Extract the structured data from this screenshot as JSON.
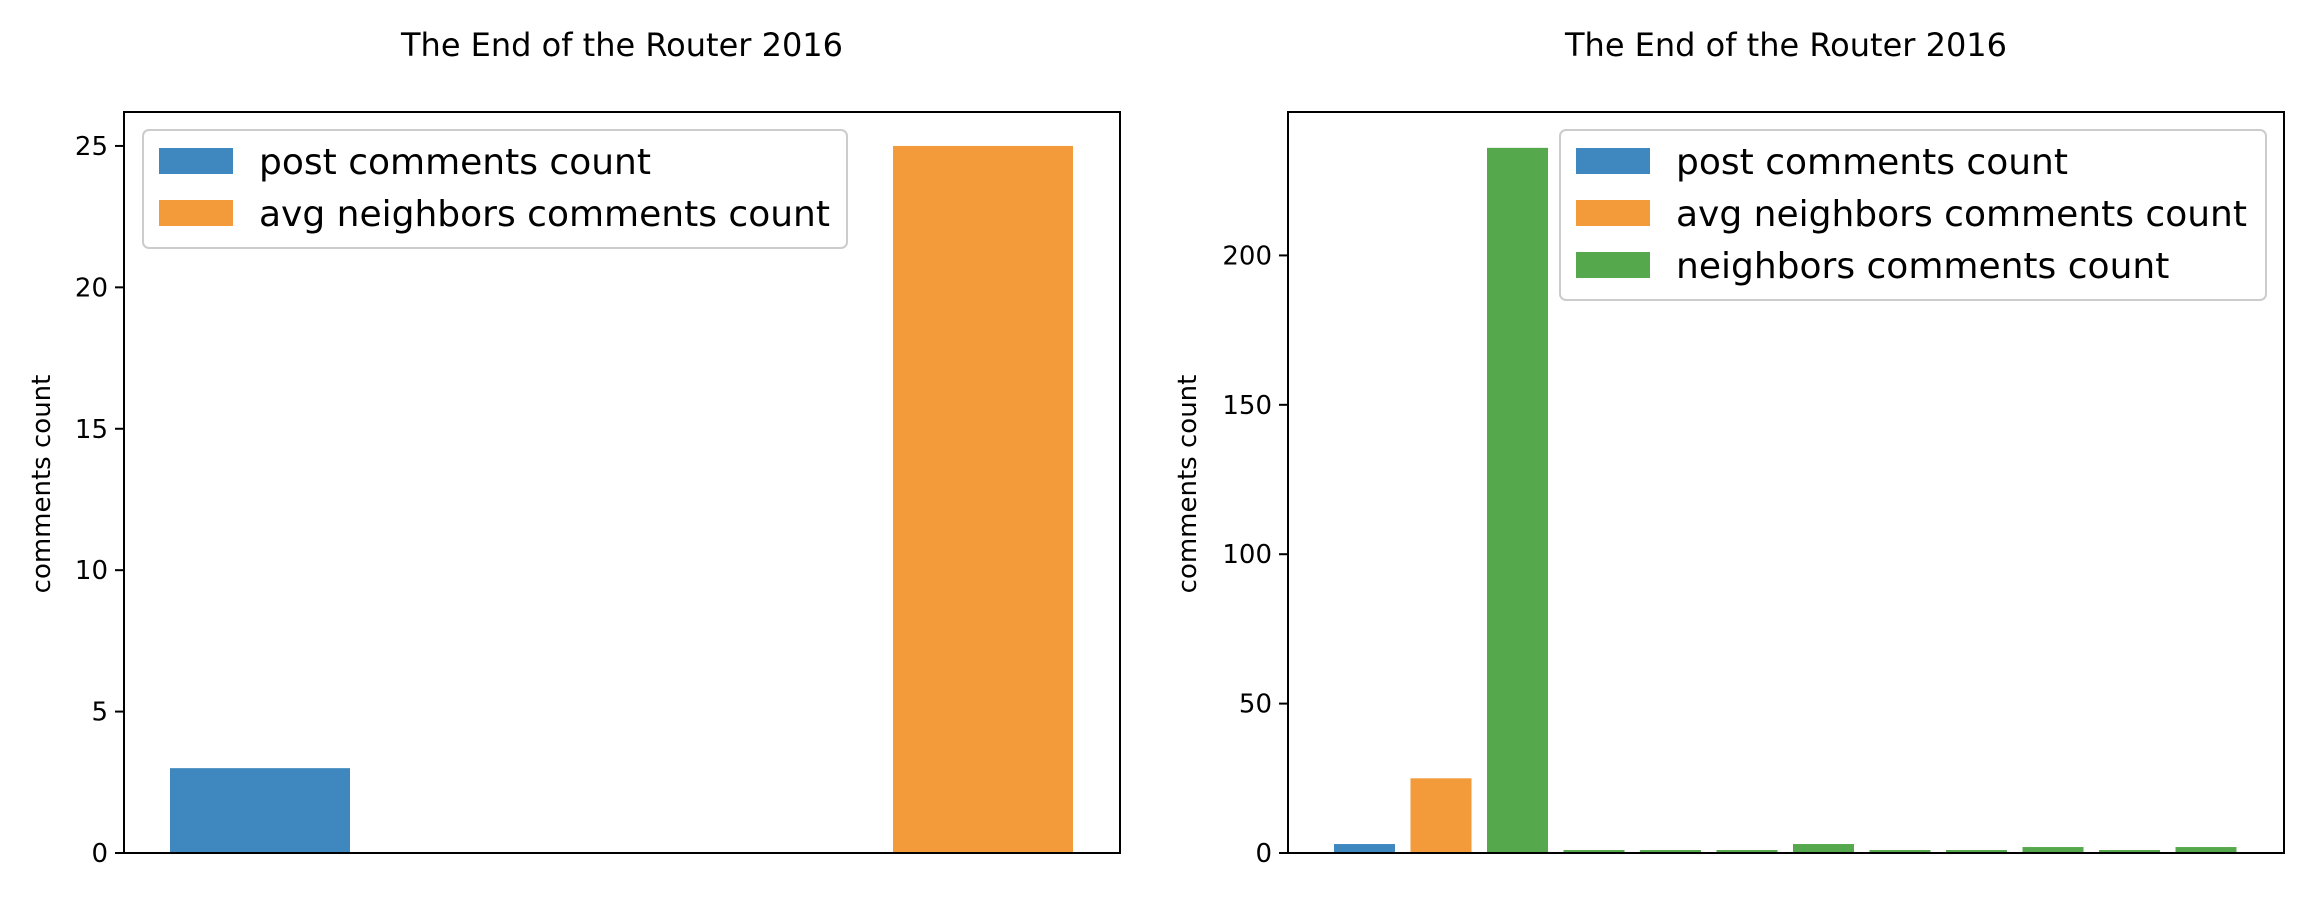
{
  "colors": {
    "post": "#3f88bf",
    "avg": "#f39a3b",
    "neighbors": "#56a84c"
  },
  "chart_data": [
    {
      "type": "bar",
      "title": "The End of the Router 2016",
      "ylabel": "comments count",
      "xlabel": "",
      "ylim": [
        0,
        26.2
      ],
      "yticks": [
        0,
        5,
        10,
        15,
        20,
        25
      ],
      "legend_position": "top-left",
      "legend": [
        "post comments count",
        "avg neighbors comments count"
      ],
      "bars": [
        {
          "series": "post comments count",
          "value": 3,
          "color_key": "post"
        },
        {
          "series": "avg neighbors comments count",
          "value": 25,
          "color_key": "avg"
        }
      ]
    },
    {
      "type": "bar",
      "title": "The End of the Router 2016",
      "ylabel": "comments count",
      "xlabel": "",
      "ylim": [
        0,
        248
      ],
      "yticks": [
        0,
        50,
        100,
        150,
        200
      ],
      "legend_position": "top-right",
      "legend": [
        "post comments count",
        "avg neighbors comments count",
        "neighbors comments count"
      ],
      "bars": [
        {
          "series": "post comments count",
          "value": 3,
          "color_key": "post"
        },
        {
          "series": "avg neighbors comments count",
          "value": 25,
          "color_key": "avg"
        },
        {
          "series": "neighbors comments count",
          "value": 236,
          "color_key": "neighbors"
        },
        {
          "series": "neighbors comments count",
          "value": 1,
          "color_key": "neighbors"
        },
        {
          "series": "neighbors comments count",
          "value": 1,
          "color_key": "neighbors"
        },
        {
          "series": "neighbors comments count",
          "value": 1,
          "color_key": "neighbors"
        },
        {
          "series": "neighbors comments count",
          "value": 3,
          "color_key": "neighbors"
        },
        {
          "series": "neighbors comments count",
          "value": 1,
          "color_key": "neighbors"
        },
        {
          "series": "neighbors comments count",
          "value": 1,
          "color_key": "neighbors"
        },
        {
          "series": "neighbors comments count",
          "value": 2,
          "color_key": "neighbors"
        },
        {
          "series": "neighbors comments count",
          "value": 1,
          "color_key": "neighbors"
        },
        {
          "series": "neighbors comments count",
          "value": 2,
          "color_key": "neighbors"
        }
      ]
    }
  ]
}
